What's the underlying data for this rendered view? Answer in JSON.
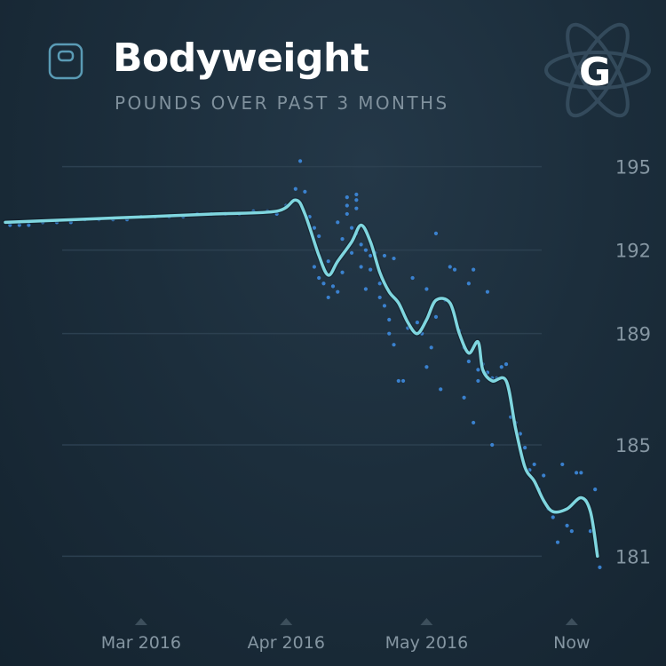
{
  "header": {
    "title": "Bodyweight",
    "subtitle": "POUNDS OVER PAST 3 MONTHS",
    "badge_letter": "G",
    "icon": "scale-icon",
    "badge_icon": "atom-icon"
  },
  "colors": {
    "trend_line": "#7fd6df",
    "dots": "#3f8fe8",
    "grid": "#2c4050",
    "tick_text": "#8596a2",
    "background": "#1c2e3c"
  },
  "chart_data": {
    "type": "line",
    "title": "Bodyweight",
    "subtitle": "POUNDS OVER PAST 3 MONTHS",
    "x_ticks": [
      "Mar 2016",
      "Apr 2016",
      "May 2016",
      "Now"
    ],
    "x_tick_days": [
      29,
      60,
      90,
      121
    ],
    "y_ticks": [
      195,
      192,
      189,
      185,
      181
    ],
    "ylim": [
      180.5,
      195.5
    ],
    "xlim": [
      0,
      129
    ],
    "grid": true,
    "series": [
      {
        "style": "trend-line",
        "points": [
          [
            0,
            193.0
          ],
          [
            15,
            193.1
          ],
          [
            30,
            193.2
          ],
          [
            45,
            193.3
          ],
          [
            58,
            193.4
          ],
          [
            62,
            193.8
          ],
          [
            64,
            193.3
          ],
          [
            67,
            191.8
          ],
          [
            69,
            191.1
          ],
          [
            71,
            191.6
          ],
          [
            74,
            192.3
          ],
          [
            76,
            192.9
          ],
          [
            78,
            192.3
          ],
          [
            80,
            191.2
          ],
          [
            82,
            190.5
          ],
          [
            84,
            190.1
          ],
          [
            86,
            189.4
          ],
          [
            88,
            189.0
          ],
          [
            90,
            189.5
          ],
          [
            92,
            190.2
          ],
          [
            95,
            190.1
          ],
          [
            97,
            189.0
          ],
          [
            99,
            188.3
          ],
          [
            101,
            188.7
          ],
          [
            102,
            187.7
          ],
          [
            104,
            187.3
          ],
          [
            107,
            187.3
          ],
          [
            109,
            185.6
          ],
          [
            111,
            184.2
          ],
          [
            113,
            183.7
          ],
          [
            115,
            183.0
          ],
          [
            117,
            182.6
          ],
          [
            120,
            182.7
          ],
          [
            123,
            183.1
          ],
          [
            125,
            182.6
          ],
          [
            126.5,
            181.0
          ]
        ]
      },
      {
        "style": "scatter",
        "points": [
          [
            1,
            192.9
          ],
          [
            3,
            192.9
          ],
          [
            5,
            192.9
          ],
          [
            8,
            193.0
          ],
          [
            11,
            193.0
          ],
          [
            14,
            193.0
          ],
          [
            17,
            193.1
          ],
          [
            20,
            193.1
          ],
          [
            23,
            193.1
          ],
          [
            26,
            193.1
          ],
          [
            29,
            193.2
          ],
          [
            32,
            193.2
          ],
          [
            35,
            193.2
          ],
          [
            38,
            193.2
          ],
          [
            41,
            193.3
          ],
          [
            44,
            193.3
          ],
          [
            47,
            193.3
          ],
          [
            50,
            193.3
          ],
          [
            53,
            193.4
          ],
          [
            56,
            193.4
          ],
          [
            58,
            193.3
          ],
          [
            60,
            193.6
          ],
          [
            62,
            194.2
          ],
          [
            63,
            195.2
          ],
          [
            64,
            194.1
          ],
          [
            65,
            193.2
          ],
          [
            66,
            192.8
          ],
          [
            66,
            191.4
          ],
          [
            67,
            192.5
          ],
          [
            67,
            191.0
          ],
          [
            68,
            190.8
          ],
          [
            69,
            190.3
          ],
          [
            69,
            191.6
          ],
          [
            70,
            190.7
          ],
          [
            71,
            193.0
          ],
          [
            71,
            190.5
          ],
          [
            72,
            192.4
          ],
          [
            72,
            191.2
          ],
          [
            73,
            193.9
          ],
          [
            73,
            193.6
          ],
          [
            73,
            193.3
          ],
          [
            74,
            192.8
          ],
          [
            74,
            191.9
          ],
          [
            75,
            194.0
          ],
          [
            75,
            193.8
          ],
          [
            75,
            193.5
          ],
          [
            75,
            192.6
          ],
          [
            76,
            192.2
          ],
          [
            76,
            191.4
          ],
          [
            77,
            192.0
          ],
          [
            77,
            190.6
          ],
          [
            78,
            191.8
          ],
          [
            78,
            191.3
          ],
          [
            79,
            191.9
          ],
          [
            80,
            190.8
          ],
          [
            80,
            190.3
          ],
          [
            81,
            191.8
          ],
          [
            81,
            190.0
          ],
          [
            82,
            189.5
          ],
          [
            82,
            189.0
          ],
          [
            83,
            191.7
          ],
          [
            83,
            188.6
          ],
          [
            84,
            187.3
          ],
          [
            85,
            187.3
          ],
          [
            86,
            189.2
          ],
          [
            87,
            191.0
          ],
          [
            88,
            189.4
          ],
          [
            89,
            189.0
          ],
          [
            90,
            190.6
          ],
          [
            90,
            187.8
          ],
          [
            91,
            188.5
          ],
          [
            92,
            189.6
          ],
          [
            92,
            192.6
          ],
          [
            93,
            187.0
          ],
          [
            94,
            190.2
          ],
          [
            95,
            191.4
          ],
          [
            96,
            191.3
          ],
          [
            97,
            189.1
          ],
          [
            98,
            188.5
          ],
          [
            98,
            186.7
          ],
          [
            99,
            190.8
          ],
          [
            99,
            188.0
          ],
          [
            100,
            191.3
          ],
          [
            100,
            185.8
          ],
          [
            101,
            187.7
          ],
          [
            101,
            187.3
          ],
          [
            102,
            187.9
          ],
          [
            103,
            190.5
          ],
          [
            103,
            187.6
          ],
          [
            104,
            187.4
          ],
          [
            104,
            185.0
          ],
          [
            105,
            187.4
          ],
          [
            106,
            187.8
          ],
          [
            107,
            187.9
          ],
          [
            108,
            186.0
          ],
          [
            109,
            185.8
          ],
          [
            110,
            185.4
          ],
          [
            111,
            184.9
          ],
          [
            112,
            184.1
          ],
          [
            113,
            184.3
          ],
          [
            114,
            183.4
          ],
          [
            115,
            183.9
          ],
          [
            116,
            182.7
          ],
          [
            117,
            182.4
          ],
          [
            118,
            181.5
          ],
          [
            119,
            184.3
          ],
          [
            120,
            182.1
          ],
          [
            121,
            181.9
          ],
          [
            122,
            184.0
          ],
          [
            123,
            184.0
          ],
          [
            124,
            183.0
          ],
          [
            125,
            181.9
          ],
          [
            126,
            183.4
          ],
          [
            127,
            180.6
          ]
        ]
      }
    ]
  }
}
